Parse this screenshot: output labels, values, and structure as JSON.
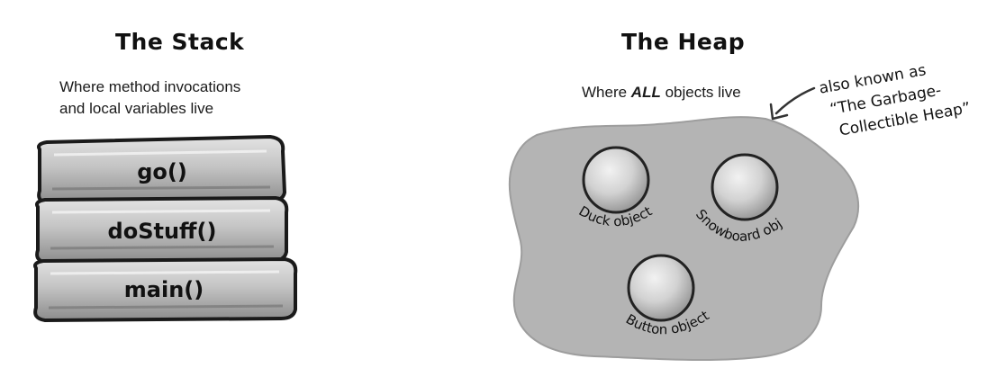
{
  "stack": {
    "title": "The Stack",
    "subtitle_line1": "Where method invocations",
    "subtitle_line2": "and local variables live",
    "frames": [
      "go()",
      "doStuff()",
      "main()"
    ]
  },
  "heap": {
    "title": "The Heap",
    "subtitle_prefix": "Where ",
    "subtitle_emphasis": "ALL",
    "subtitle_suffix": " objects live",
    "objects": [
      "Duck object",
      "Snowboard object",
      "Button object"
    ]
  },
  "annotation": {
    "line1": "also known as",
    "line2": "“The Garbage-",
    "line3": "Collectible Heap”"
  },
  "colors": {
    "heap_fill": "#b7b7b7",
    "frame_fill": "#c8c8c8",
    "object_fill": "#dadada",
    "ink": "#111111"
  }
}
